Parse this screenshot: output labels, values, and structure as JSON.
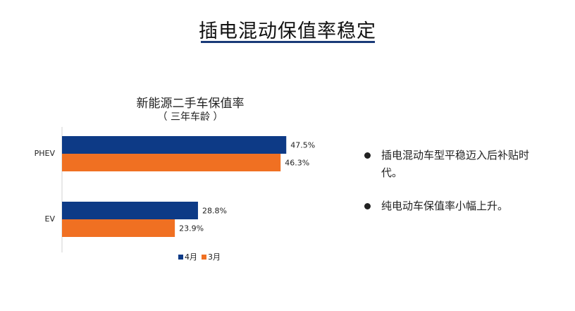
{
  "slide": {
    "title": "插电混动保值率稳定"
  },
  "chart_data": {
    "type": "bar",
    "orientation": "horizontal",
    "title": "新能源二手车保值率",
    "subtitle": "（  三年车龄  ）",
    "categories": [
      "PHEV",
      "EV"
    ],
    "series": [
      {
        "name": "4月",
        "values": [
          47.5,
          28.8
        ],
        "color": "#0d3a86"
      },
      {
        "name": "3月",
        "values": [
          46.3,
          23.9
        ],
        "color": "#f07022"
      }
    ],
    "value_labels": [
      [
        "47.5%",
        "28.8%"
      ],
      [
        "46.3%",
        "23.9%"
      ]
    ],
    "xlim": [
      0,
      60
    ],
    "grid": false,
    "legend": "bottom"
  },
  "bullets": [
    "插电混动车型平稳迈入后补贴时代。",
    "纯电动车保值率小幅上升。"
  ],
  "colors": {
    "accent_rule": "#1a3a78",
    "text": "#222222"
  }
}
